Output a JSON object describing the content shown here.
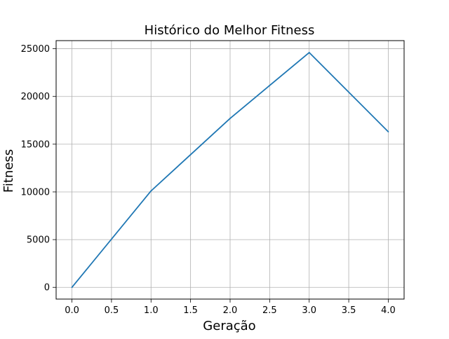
{
  "chart_data": {
    "type": "line",
    "title": "Histórico do Melhor Fitness",
    "xlabel": "Geração",
    "ylabel": "Fitness",
    "xlim": [
      -0.2,
      4.2
    ],
    "ylim": [
      -1230,
      25850
    ],
    "xticks": [
      0.0,
      0.5,
      1.0,
      1.5,
      2.0,
      2.5,
      3.0,
      3.5,
      4.0
    ],
    "xtick_labels": [
      "0.0",
      "0.5",
      "1.0",
      "1.5",
      "2.0",
      "2.5",
      "3.0",
      "3.5",
      "4.0"
    ],
    "yticks": [
      0,
      5000,
      10000,
      15000,
      20000,
      25000
    ],
    "ytick_labels": [
      "0",
      "5000",
      "10000",
      "15000",
      "20000",
      "25000"
    ],
    "grid": true,
    "series": [
      {
        "x": [
          0,
          1,
          2,
          3,
          4
        ],
        "y": [
          0,
          10100,
          17700,
          24600,
          16300
        ],
        "color": "#1f77b4"
      }
    ]
  }
}
